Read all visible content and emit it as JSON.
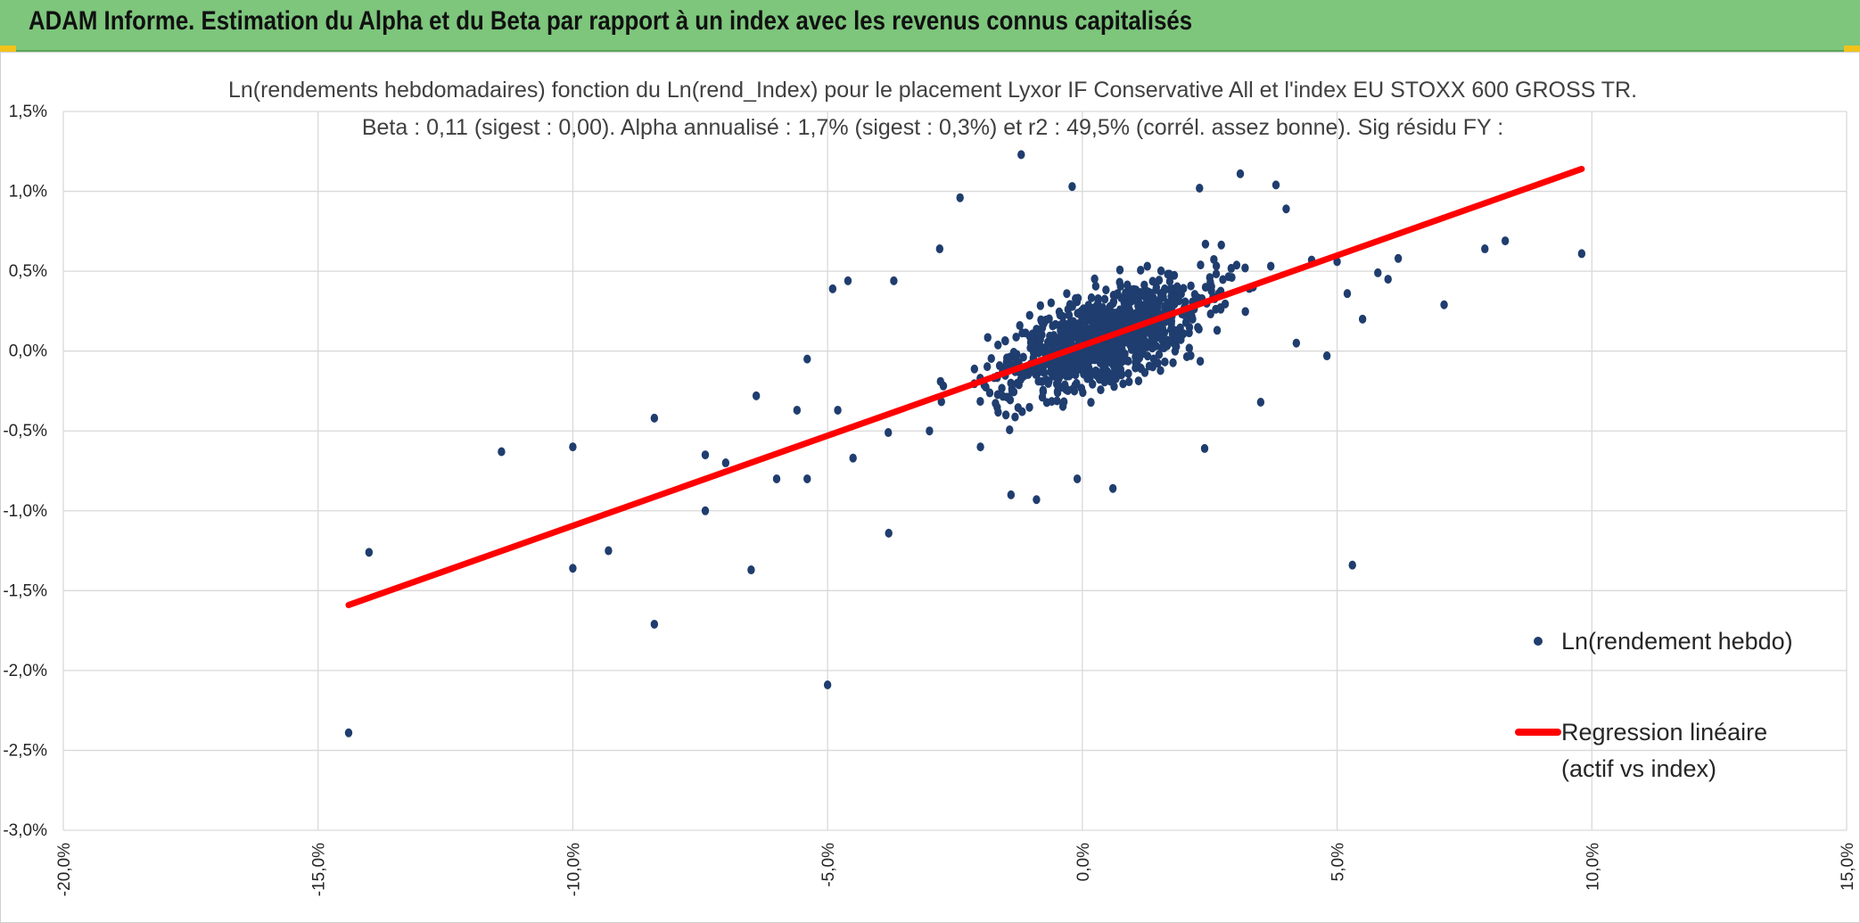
{
  "header": {
    "title": "ADAM Informe. Estimation du Alpha et du Beta par rapport à un index avec les revenus connus capitalisés",
    "background": "#7dc67c",
    "corner_color": "#f2c21a"
  },
  "chart_data": {
    "type": "scatter",
    "title": "Ln(rendements hebdomadaires) fonction du Ln(rend_Index) pour le placement Lyxor IF Conservative All et l'index EU STOXX 600 GROSS TR.",
    "subtitle": "Beta : 0,11 (sigest : 0,00). Alpha annualisé : 1,7% (sigest : 0,3%) et r2 : 49,5% (corrél. assez bonne). Sig résidu FY :",
    "xlabel": "",
    "ylabel": "",
    "xlim": [
      -20,
      15
    ],
    "ylim": [
      -3.0,
      1.5
    ],
    "x_ticks": [
      -20,
      -15,
      -10,
      -5,
      0,
      5,
      10,
      15
    ],
    "x_tick_labels": [
      "-20,0%",
      "-15,0%",
      "-10,0%",
      "-5,0%",
      "0,0%",
      "5,0%",
      "10,0%",
      "15,0%"
    ],
    "y_ticks": [
      1.5,
      1.0,
      0.5,
      0.0,
      -0.5,
      -1.0,
      -1.5,
      -2.0,
      -2.5,
      -3.0
    ],
    "y_tick_labels": [
      "1,5%",
      "1,0%",
      "0,5%",
      "0,0%",
      "-0,5%",
      "-1,0%",
      "-1,5%",
      "-2,0%",
      "-2,5%",
      "-3,0%"
    ],
    "grid": true,
    "legend_position": "right",
    "series": [
      {
        "name": "Ln(rendement hebdo)",
        "color": "#1f3d6e",
        "note": "cluster of ~1100 weekly points centred near (0.5%, 0.05%)",
        "points": [
          [
            -14.4,
            -2.39
          ],
          [
            -14.0,
            -1.26
          ],
          [
            -11.4,
            -0.63
          ],
          [
            -10.0,
            -0.6
          ],
          [
            -10.0,
            -1.36
          ],
          [
            -9.3,
            -1.25
          ],
          [
            -8.4,
            -0.42
          ],
          [
            -8.4,
            -1.71
          ],
          [
            -7.4,
            -0.65
          ],
          [
            -7.4,
            -1.0
          ],
          [
            -7.0,
            -0.7
          ],
          [
            -6.5,
            -1.37
          ],
          [
            -6.4,
            -0.28
          ],
          [
            -6.0,
            -0.8
          ],
          [
            -5.6,
            -0.37
          ],
          [
            -5.4,
            -0.05
          ],
          [
            -5.4,
            -0.8
          ],
          [
            -5.0,
            -2.09
          ],
          [
            -4.9,
            0.39
          ],
          [
            -4.6,
            0.44
          ],
          [
            -4.8,
            -0.37
          ],
          [
            -4.5,
            -0.67
          ],
          [
            -3.8,
            -1.14
          ],
          [
            -3.7,
            0.44
          ],
          [
            -2.8,
            0.64
          ],
          [
            -2.4,
            0.96
          ],
          [
            -1.2,
            1.23
          ],
          [
            -0.2,
            1.03
          ],
          [
            2.3,
            1.02
          ],
          [
            3.1,
            1.11
          ],
          [
            3.8,
            1.04
          ],
          [
            4.0,
            0.89
          ],
          [
            4.5,
            0.57
          ],
          [
            5.0,
            0.56
          ],
          [
            5.2,
            0.36
          ],
          [
            5.8,
            0.49
          ],
          [
            6.0,
            0.45
          ],
          [
            6.2,
            0.58
          ],
          [
            7.1,
            0.29
          ],
          [
            7.9,
            0.64
          ],
          [
            8.3,
            0.69
          ],
          [
            9.8,
            0.61
          ],
          [
            5.3,
            -1.34
          ],
          [
            3.5,
            -0.32
          ],
          [
            2.4,
            -0.61
          ],
          [
            0.6,
            -0.86
          ],
          [
            -0.1,
            -0.8
          ],
          [
            -1.4,
            -0.9
          ],
          [
            -0.9,
            -0.93
          ],
          [
            4.8,
            -0.03
          ],
          [
            4.2,
            0.05
          ],
          [
            5.5,
            0.2
          ],
          [
            -3.0,
            -0.5
          ],
          [
            -2.0,
            -0.6
          ],
          [
            -1.5,
            -0.4
          ]
        ]
      },
      {
        "name": "Regression linéaire\n(actif vs index)",
        "legend_lines": [
          "Regression linéaire",
          "(actif vs index)"
        ],
        "color": "#ff0000",
        "type": "line",
        "x": [
          -14.4,
          9.8
        ],
        "y": [
          -1.59,
          1.14
        ]
      }
    ]
  }
}
